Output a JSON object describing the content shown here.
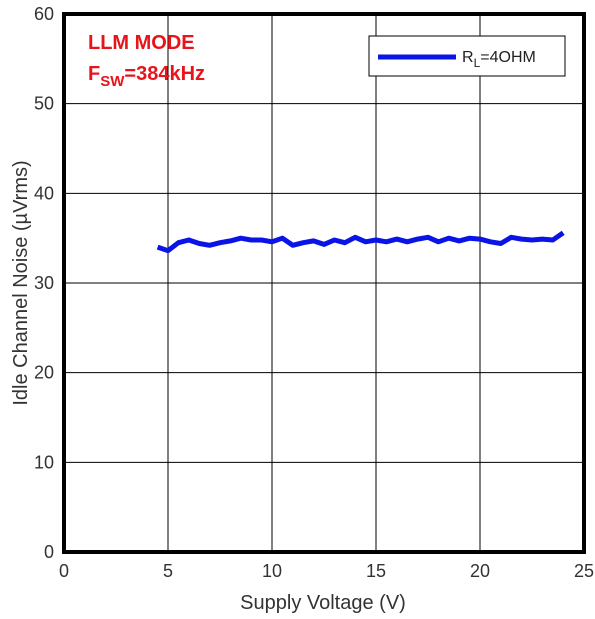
{
  "chart_data": {
    "type": "line",
    "xlabel": "Supply Voltage (V)",
    "ylabel": "Idle Channel Noise (µVrms)",
    "xlim": [
      0,
      25
    ],
    "ylim": [
      0,
      60
    ],
    "xticks": [
      0,
      5,
      10,
      15,
      20,
      25
    ],
    "yticks": [
      0,
      10,
      20,
      30,
      40,
      50,
      60
    ],
    "xtick_labels": [
      "0",
      "5",
      "10",
      "15",
      "20",
      "25"
    ],
    "ytick_labels": [
      "0",
      "10",
      "20",
      "30",
      "40",
      "50",
      "60"
    ],
    "grid": true,
    "legend_position": "top-right",
    "annotations": {
      "line1": "LLM MODE",
      "line2_main": "F",
      "line2_sub": "SW",
      "line2_rest": "=384kHz"
    },
    "series": [
      {
        "name": "R_L=4OHM",
        "legend_main": "R",
        "legend_sub": "L",
        "legend_rest": "=4OHM",
        "color": "#0a14e6",
        "x": [
          4.5,
          5.0,
          5.5,
          6.0,
          6.5,
          7.0,
          7.5,
          8.0,
          8.5,
          9.0,
          9.5,
          10.0,
          10.5,
          11.0,
          11.5,
          12.0,
          12.5,
          13.0,
          13.5,
          14.0,
          14.5,
          15.0,
          15.5,
          16.0,
          16.5,
          17.0,
          17.5,
          18.0,
          18.5,
          19.0,
          19.5,
          20.0,
          20.5,
          21.0,
          21.5,
          22.0,
          22.5,
          23.0,
          23.5,
          24.0
        ],
        "y": [
          34.0,
          33.6,
          34.5,
          34.8,
          34.4,
          34.2,
          34.5,
          34.7,
          35.0,
          34.8,
          34.8,
          34.6,
          35.0,
          34.2,
          34.5,
          34.7,
          34.3,
          34.8,
          34.5,
          35.1,
          34.6,
          34.8,
          34.6,
          34.9,
          34.6,
          34.9,
          35.1,
          34.6,
          35.0,
          34.7,
          35.0,
          34.9,
          34.6,
          34.4,
          35.1,
          34.9,
          34.8,
          34.9,
          34.8,
          35.6
        ]
      }
    ]
  }
}
